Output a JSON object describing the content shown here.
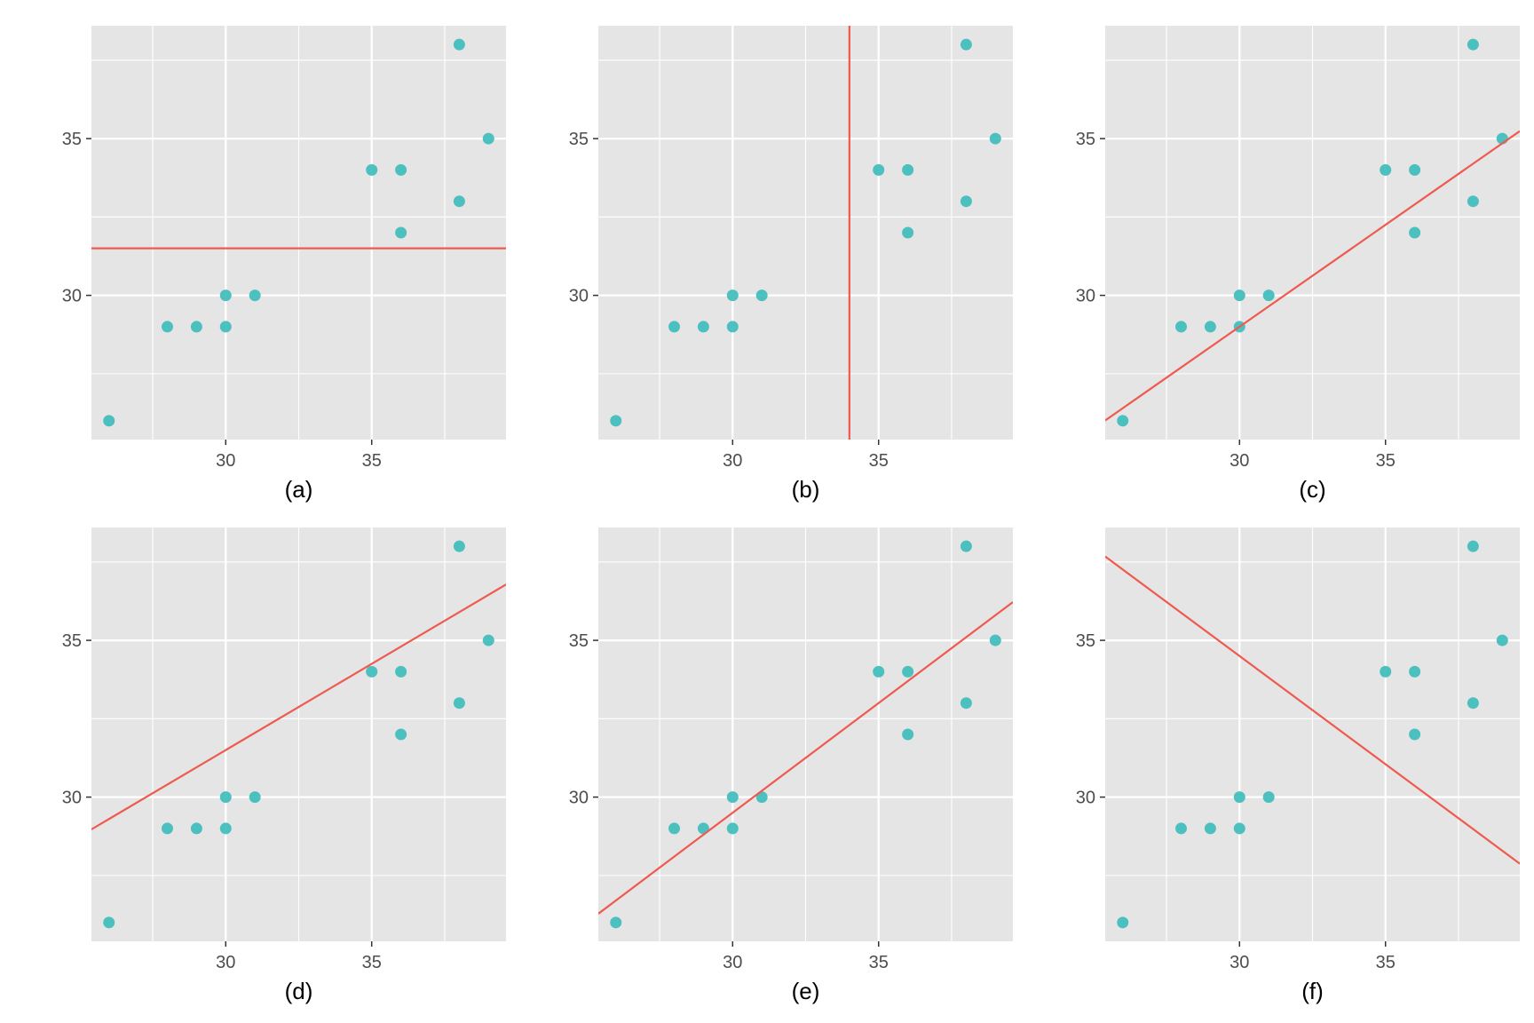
{
  "chart_data": [
    {
      "type": "scatter",
      "caption": "(a)",
      "points": [
        [
          26,
          26
        ],
        [
          28,
          29
        ],
        [
          29,
          29
        ],
        [
          30,
          29
        ],
        [
          30,
          30
        ],
        [
          31,
          30
        ],
        [
          35,
          34
        ],
        [
          36,
          34
        ],
        [
          36,
          32
        ],
        [
          38,
          33
        ],
        [
          38,
          38
        ],
        [
          39,
          35
        ]
      ],
      "line": {
        "kind": "horizontal",
        "y": 31.5
      },
      "xlim": [
        25.4,
        39.6
      ],
      "ylim": [
        25.4,
        38.6
      ],
      "xticks": [
        30,
        35
      ],
      "yticks": [
        30,
        35
      ],
      "xtick_labels": [
        "30",
        "35"
      ],
      "ytick_labels": [
        "30",
        "35"
      ],
      "grid": true
    },
    {
      "type": "scatter",
      "caption": "(b)",
      "points": [
        [
          26,
          26
        ],
        [
          28,
          29
        ],
        [
          29,
          29
        ],
        [
          30,
          29
        ],
        [
          30,
          30
        ],
        [
          31,
          30
        ],
        [
          35,
          34
        ],
        [
          36,
          34
        ],
        [
          36,
          32
        ],
        [
          38,
          33
        ],
        [
          38,
          38
        ],
        [
          39,
          35
        ]
      ],
      "line": {
        "kind": "vertical",
        "x": 34
      },
      "xlim": [
        25.4,
        39.6
      ],
      "ylim": [
        25.4,
        38.6
      ],
      "xticks": [
        30,
        35
      ],
      "yticks": [
        30,
        35
      ],
      "xtick_labels": [
        "30",
        "35"
      ],
      "ytick_labels": [
        "30",
        "35"
      ],
      "grid": true
    },
    {
      "type": "scatter",
      "caption": "(c)",
      "points": [
        [
          26,
          26
        ],
        [
          28,
          29
        ],
        [
          29,
          29
        ],
        [
          30,
          29
        ],
        [
          30,
          30
        ],
        [
          31,
          30
        ],
        [
          35,
          34
        ],
        [
          36,
          34
        ],
        [
          36,
          32
        ],
        [
          38,
          33
        ],
        [
          38,
          38
        ],
        [
          39,
          35
        ]
      ],
      "line": {
        "kind": "slope",
        "slope": 0.65,
        "intercept": 9.5
      },
      "xlim": [
        25.4,
        39.6
      ],
      "ylim": [
        25.4,
        38.6
      ],
      "xticks": [
        30,
        35
      ],
      "yticks": [
        30,
        35
      ],
      "xtick_labels": [
        "30",
        "35"
      ],
      "ytick_labels": [
        "30",
        "35"
      ],
      "grid": true
    },
    {
      "type": "scatter",
      "caption": "(d)",
      "points": [
        [
          26,
          26
        ],
        [
          28,
          29
        ],
        [
          29,
          29
        ],
        [
          30,
          29
        ],
        [
          30,
          30
        ],
        [
          31,
          30
        ],
        [
          35,
          34
        ],
        [
          36,
          34
        ],
        [
          36,
          32
        ],
        [
          38,
          33
        ],
        [
          38,
          38
        ],
        [
          39,
          35
        ]
      ],
      "line": {
        "kind": "slope",
        "slope": 0.55,
        "intercept": 15
      },
      "xlim": [
        25.4,
        39.6
      ],
      "ylim": [
        25.4,
        38.6
      ],
      "xticks": [
        30,
        35
      ],
      "yticks": [
        30,
        35
      ],
      "xtick_labels": [
        "30",
        "35"
      ],
      "ytick_labels": [
        "30",
        "35"
      ],
      "grid": true
    },
    {
      "type": "scatter",
      "caption": "(e)",
      "points": [
        [
          26,
          26
        ],
        [
          28,
          29
        ],
        [
          29,
          29
        ],
        [
          30,
          29
        ],
        [
          30,
          30
        ],
        [
          31,
          30
        ],
        [
          35,
          34
        ],
        [
          36,
          34
        ],
        [
          36,
          32
        ],
        [
          38,
          33
        ],
        [
          38,
          38
        ],
        [
          39,
          35
        ]
      ],
      "line": {
        "kind": "slope",
        "slope": 0.7,
        "intercept": 8.5
      },
      "xlim": [
        25.4,
        39.6
      ],
      "ylim": [
        25.4,
        38.6
      ],
      "xticks": [
        30,
        35
      ],
      "yticks": [
        30,
        35
      ],
      "xtick_labels": [
        "30",
        "35"
      ],
      "ytick_labels": [
        "30",
        "35"
      ],
      "grid": true
    },
    {
      "type": "scatter",
      "caption": "(f)",
      "points": [
        [
          26,
          26
        ],
        [
          28,
          29
        ],
        [
          29,
          29
        ],
        [
          30,
          29
        ],
        [
          30,
          30
        ],
        [
          31,
          30
        ],
        [
          35,
          34
        ],
        [
          36,
          34
        ],
        [
          36,
          32
        ],
        [
          38,
          33
        ],
        [
          38,
          38
        ],
        [
          39,
          35
        ]
      ],
      "line": {
        "kind": "slope",
        "slope": -0.69,
        "intercept": 55.2
      },
      "xlim": [
        25.4,
        39.6
      ],
      "ylim": [
        25.4,
        38.6
      ],
      "xticks": [
        30,
        35
      ],
      "yticks": [
        30,
        35
      ],
      "xtick_labels": [
        "30",
        "35"
      ],
      "ytick_labels": [
        "30",
        "35"
      ],
      "grid": true
    }
  ],
  "colors": {
    "panel_background": "#e5e5e5",
    "grid_major": "#ffffff",
    "point": "#3fbcbc",
    "line": "#ee5a4f",
    "tick_mark": "#333333",
    "tick_text": "#4d4d4d",
    "caption": "#000000"
  }
}
